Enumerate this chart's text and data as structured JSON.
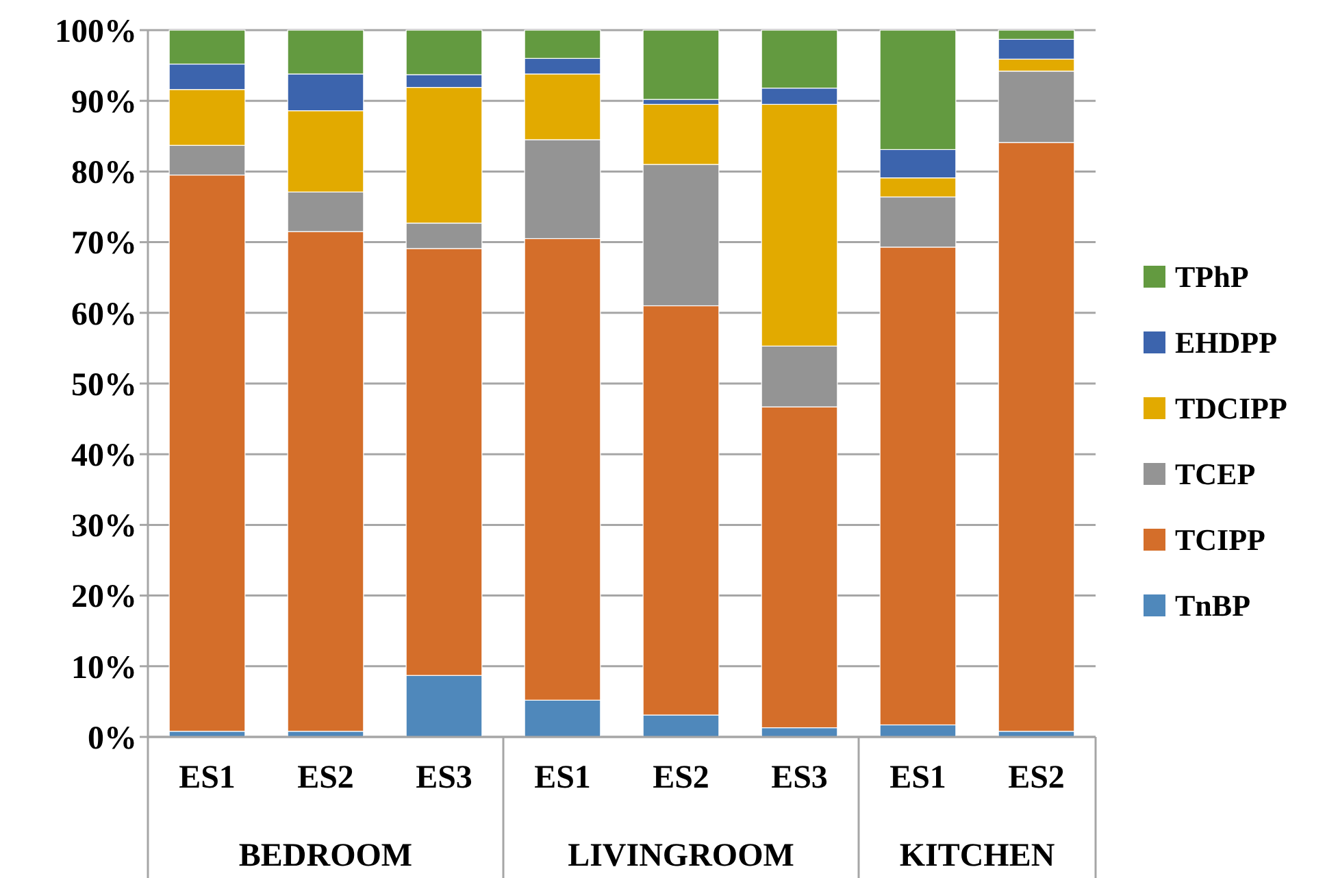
{
  "chart_data": {
    "type": "bar",
    "stacked": true,
    "categories": [
      "ES1",
      "ES2",
      "ES3",
      "ES1",
      "ES2",
      "ES3",
      "ES1",
      "ES2"
    ],
    "annotations": [
      "BEDROOM",
      "LIVINGROOM",
      "KITCHEN"
    ],
    "series": [
      {
        "name": "TnBP",
        "color": "#4f88bb",
        "values": [
          0.8,
          0.8,
          8.7,
          5.2,
          3.1,
          1.3,
          1.7,
          0.8
        ]
      },
      {
        "name": "TCIPP",
        "color": "#d46e2a",
        "values": [
          78.7,
          70.7,
          60.4,
          65.3,
          57.9,
          45.4,
          67.6,
          83.3
        ]
      },
      {
        "name": "TCEP",
        "color": "#949494",
        "values": [
          4.2,
          5.6,
          3.6,
          14.0,
          20.0,
          8.6,
          7.1,
          10.1
        ]
      },
      {
        "name": "TDCIPP",
        "color": "#e2aa00",
        "values": [
          7.9,
          11.5,
          19.2,
          9.3,
          8.5,
          34.2,
          2.7,
          1.7
        ]
      },
      {
        "name": "EHDPP",
        "color": "#3c64ad",
        "values": [
          3.6,
          5.2,
          1.8,
          2.2,
          0.7,
          2.3,
          4.0,
          2.8
        ]
      },
      {
        "name": "TPhP",
        "color": "#639a40",
        "values": [
          4.8,
          6.2,
          6.3,
          4.0,
          9.8,
          8.2,
          16.9,
          1.3
        ]
      }
    ],
    "ylim": [
      0,
      100
    ],
    "yticks": [
      {
        "value": 0,
        "label": "0%"
      },
      {
        "value": 10,
        "label": "10%"
      },
      {
        "value": 20,
        "label": "20%"
      },
      {
        "value": 30,
        "label": "30%"
      },
      {
        "value": 40,
        "label": "40%"
      },
      {
        "value": 50,
        "label": "50%"
      },
      {
        "value": 60,
        "label": "60%"
      },
      {
        "value": 70,
        "label": "70%"
      },
      {
        "value": 80,
        "label": "80%"
      },
      {
        "value": 90,
        "label": "90%"
      },
      {
        "value": 100,
        "label": "100%"
      }
    ],
    "grid": "y",
    "legend": "right"
  }
}
